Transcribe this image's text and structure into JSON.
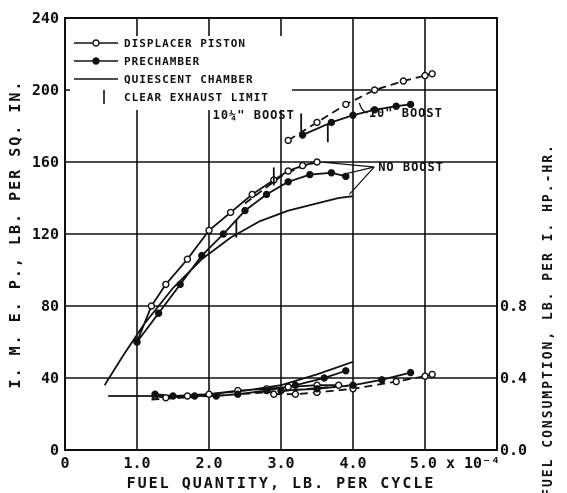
{
  "chart_data": {
    "type": "line",
    "title": "",
    "xlabel": "FUEL QUANTITY, LB. PER CYCLE",
    "ylabel": "I. M. E. P., LB. PER SQ. IN.",
    "y2label": "FUEL CONSUMPTION, LB. PER I. HP.-HR.",
    "xlim": [
      0,
      6
    ],
    "ylim": [
      0,
      240
    ],
    "y2lim": [
      0,
      2.4
    ],
    "x_ticks": [
      "0",
      "1.0",
      "2.0",
      "3.0",
      "4.0",
      "5.0 x 10⁻⁴"
    ],
    "x_tick_values": [
      0,
      1,
      2,
      3,
      4,
      5
    ],
    "y_ticks": [
      "0",
      "40",
      "80",
      "120",
      "160",
      "200",
      "240"
    ],
    "y_tick_values": [
      0,
      40,
      80,
      120,
      160,
      200,
      240
    ],
    "y2_ticks": [
      "0.0",
      "0.4",
      "0.8"
    ],
    "y2_tick_values": [
      0,
      0.4,
      0.8
    ],
    "grid": true,
    "legend_position": "top-left",
    "legend": [
      {
        "label": "DISPLACER PISTON",
        "marker": "open-circle"
      },
      {
        "label": "PRECHAMBER",
        "marker": "filled-circle"
      },
      {
        "label": "QUIESCENT CHAMBER",
        "marker": "none"
      },
      {
        "label": "CLEAR EXHAUST LIMIT",
        "marker": "tick"
      }
    ],
    "annotations": [
      {
        "text": "10¼\" BOOST",
        "x": 2.05,
        "y": 184
      },
      {
        "text": "10\" BOOST",
        "x": 4.22,
        "y": 185
      },
      {
        "text": "NO BOOST",
        "x": 4.35,
        "y": 155
      }
    ],
    "series": [
      {
        "id": "disp-imep-boost",
        "axis": "left",
        "dash": true,
        "marker": "open-circle",
        "x": [
          3.1,
          3.5,
          3.9,
          4.3,
          4.7,
          5.0,
          5.1
        ],
        "y": [
          172,
          182,
          192,
          200,
          205,
          208,
          209
        ]
      },
      {
        "id": "prech-imep-boost",
        "axis": "left",
        "dash": false,
        "marker": "filled-circle",
        "x": [
          3.3,
          3.7,
          4.0,
          4.3,
          4.6,
          4.8
        ],
        "y": [
          175,
          182,
          186,
          189,
          191,
          192
        ]
      },
      {
        "id": "disp-imep-noboost",
        "axis": "left",
        "dash": false,
        "marker": "open-circle",
        "x": [
          1.0,
          1.2,
          1.4,
          1.7,
          2.0,
          2.3,
          2.6,
          2.9,
          3.1,
          3.3,
          3.5
        ],
        "y": [
          60,
          80,
          92,
          106,
          122,
          132,
          142,
          150,
          155,
          158,
          160
        ]
      },
      {
        "id": "disp-imep-noboost-dash",
        "axis": "left",
        "dash": true,
        "marker": "none",
        "x": [
          2.5,
          2.8,
          3.0,
          3.2,
          3.5
        ],
        "y": [
          137,
          146,
          152,
          156,
          160
        ]
      },
      {
        "id": "prech-imep-noboost",
        "axis": "left",
        "dash": false,
        "marker": "filled-circle",
        "x": [
          1.0,
          1.3,
          1.6,
          1.9,
          2.2,
          2.5,
          2.8,
          3.1,
          3.4,
          3.7,
          3.9
        ],
        "y": [
          60,
          76,
          92,
          108,
          120,
          133,
          142,
          149,
          153,
          154,
          152
        ]
      },
      {
        "id": "quies-imep",
        "axis": "left",
        "dash": false,
        "marker": "none",
        "x": [
          0.55,
          0.8,
          1.1,
          1.5,
          1.9,
          2.3,
          2.7,
          3.1,
          3.5,
          3.8,
          4.0
        ],
        "y": [
          36,
          52,
          70,
          90,
          106,
          118,
          127,
          133,
          137,
          140,
          141
        ]
      },
      {
        "id": "disp-fuel-noboost",
        "axis": "right",
        "dash": false,
        "marker": "open-circle",
        "x": [
          1.25,
          1.4,
          1.7,
          2.0,
          2.4,
          2.8,
          3.1,
          3.5,
          3.8
        ],
        "y": [
          0.3,
          0.29,
          0.3,
          0.31,
          0.33,
          0.34,
          0.35,
          0.36,
          0.36
        ]
      },
      {
        "id": "disp-fuel-boost",
        "axis": "right",
        "dash": true,
        "marker": "open-circle",
        "x": [
          2.9,
          3.2,
          3.5,
          4.0,
          4.6,
          5.0,
          5.1
        ],
        "y": [
          0.31,
          0.31,
          0.32,
          0.34,
          0.38,
          0.41,
          0.42
        ]
      },
      {
        "id": "prech-fuel-noboost",
        "axis": "right",
        "dash": false,
        "marker": "filled-circle",
        "x": [
          1.25,
          1.5,
          1.8,
          2.1,
          2.4,
          2.8,
          3.2,
          3.6,
          3.9
        ],
        "y": [
          0.31,
          0.3,
          0.3,
          0.3,
          0.31,
          0.33,
          0.36,
          0.4,
          0.44
        ]
      },
      {
        "id": "prech-fuel-boost",
        "axis": "right",
        "dash": false,
        "marker": "filled-circle",
        "x": [
          3.0,
          3.5,
          4.0,
          4.4,
          4.8
        ],
        "y": [
          0.33,
          0.34,
          0.36,
          0.39,
          0.43
        ]
      },
      {
        "id": "quies-fuel",
        "axis": "right",
        "dash": false,
        "marker": "none",
        "x": [
          0.6,
          1.0,
          1.5,
          2.0,
          2.5,
          3.0,
          3.5,
          4.0
        ],
        "y": [
          0.3,
          0.3,
          0.3,
          0.31,
          0.33,
          0.36,
          0.42,
          0.49
        ]
      },
      {
        "id": "fuel-extra-dash",
        "axis": "right",
        "dash": true,
        "marker": "none",
        "x": [
          1.2,
          2.0,
          2.8,
          3.4,
          4.0
        ],
        "y": [
          0.28,
          0.3,
          0.32,
          0.34,
          0.36
        ]
      }
    ],
    "exhaust_limits": [
      {
        "x": 2.9,
        "y": 152
      },
      {
        "x": 3.28,
        "y": 182
      },
      {
        "x": 3.65,
        "y": 176
      },
      {
        "x": 2.38,
        "y": 123
      }
    ]
  }
}
